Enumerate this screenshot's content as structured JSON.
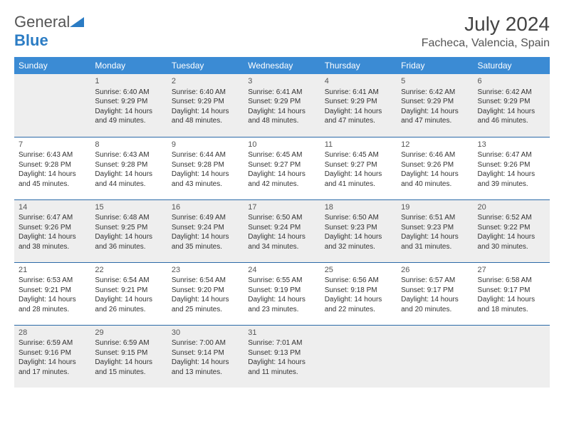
{
  "logo": {
    "text1": "General",
    "text2": "Blue"
  },
  "title": "July 2024",
  "location": "Facheca, Valencia, Spain",
  "colors": {
    "header_bg": "#3b8bd4",
    "header_text": "#ffffff",
    "row_odd_bg": "#eeeeee",
    "row_even_bg": "#ffffff",
    "row_border": "#2b6aa8",
    "logo_blue": "#2b7cc4"
  },
  "weekdays": [
    "Sunday",
    "Monday",
    "Tuesday",
    "Wednesday",
    "Thursday",
    "Friday",
    "Saturday"
  ],
  "weeks": [
    [
      null,
      {
        "n": "1",
        "sr": "Sunrise: 6:40 AM",
        "ss": "Sunset: 9:29 PM",
        "d1": "Daylight: 14 hours",
        "d2": "and 49 minutes."
      },
      {
        "n": "2",
        "sr": "Sunrise: 6:40 AM",
        "ss": "Sunset: 9:29 PM",
        "d1": "Daylight: 14 hours",
        "d2": "and 48 minutes."
      },
      {
        "n": "3",
        "sr": "Sunrise: 6:41 AM",
        "ss": "Sunset: 9:29 PM",
        "d1": "Daylight: 14 hours",
        "d2": "and 48 minutes."
      },
      {
        "n": "4",
        "sr": "Sunrise: 6:41 AM",
        "ss": "Sunset: 9:29 PM",
        "d1": "Daylight: 14 hours",
        "d2": "and 47 minutes."
      },
      {
        "n": "5",
        "sr": "Sunrise: 6:42 AM",
        "ss": "Sunset: 9:29 PM",
        "d1": "Daylight: 14 hours",
        "d2": "and 47 minutes."
      },
      {
        "n": "6",
        "sr": "Sunrise: 6:42 AM",
        "ss": "Sunset: 9:29 PM",
        "d1": "Daylight: 14 hours",
        "d2": "and 46 minutes."
      }
    ],
    [
      {
        "n": "7",
        "sr": "Sunrise: 6:43 AM",
        "ss": "Sunset: 9:28 PM",
        "d1": "Daylight: 14 hours",
        "d2": "and 45 minutes."
      },
      {
        "n": "8",
        "sr": "Sunrise: 6:43 AM",
        "ss": "Sunset: 9:28 PM",
        "d1": "Daylight: 14 hours",
        "d2": "and 44 minutes."
      },
      {
        "n": "9",
        "sr": "Sunrise: 6:44 AM",
        "ss": "Sunset: 9:28 PM",
        "d1": "Daylight: 14 hours",
        "d2": "and 43 minutes."
      },
      {
        "n": "10",
        "sr": "Sunrise: 6:45 AM",
        "ss": "Sunset: 9:27 PM",
        "d1": "Daylight: 14 hours",
        "d2": "and 42 minutes."
      },
      {
        "n": "11",
        "sr": "Sunrise: 6:45 AM",
        "ss": "Sunset: 9:27 PM",
        "d1": "Daylight: 14 hours",
        "d2": "and 41 minutes."
      },
      {
        "n": "12",
        "sr": "Sunrise: 6:46 AM",
        "ss": "Sunset: 9:26 PM",
        "d1": "Daylight: 14 hours",
        "d2": "and 40 minutes."
      },
      {
        "n": "13",
        "sr": "Sunrise: 6:47 AM",
        "ss": "Sunset: 9:26 PM",
        "d1": "Daylight: 14 hours",
        "d2": "and 39 minutes."
      }
    ],
    [
      {
        "n": "14",
        "sr": "Sunrise: 6:47 AM",
        "ss": "Sunset: 9:26 PM",
        "d1": "Daylight: 14 hours",
        "d2": "and 38 minutes."
      },
      {
        "n": "15",
        "sr": "Sunrise: 6:48 AM",
        "ss": "Sunset: 9:25 PM",
        "d1": "Daylight: 14 hours",
        "d2": "and 36 minutes."
      },
      {
        "n": "16",
        "sr": "Sunrise: 6:49 AM",
        "ss": "Sunset: 9:24 PM",
        "d1": "Daylight: 14 hours",
        "d2": "and 35 minutes."
      },
      {
        "n": "17",
        "sr": "Sunrise: 6:50 AM",
        "ss": "Sunset: 9:24 PM",
        "d1": "Daylight: 14 hours",
        "d2": "and 34 minutes."
      },
      {
        "n": "18",
        "sr": "Sunrise: 6:50 AM",
        "ss": "Sunset: 9:23 PM",
        "d1": "Daylight: 14 hours",
        "d2": "and 32 minutes."
      },
      {
        "n": "19",
        "sr": "Sunrise: 6:51 AM",
        "ss": "Sunset: 9:23 PM",
        "d1": "Daylight: 14 hours",
        "d2": "and 31 minutes."
      },
      {
        "n": "20",
        "sr": "Sunrise: 6:52 AM",
        "ss": "Sunset: 9:22 PM",
        "d1": "Daylight: 14 hours",
        "d2": "and 30 minutes."
      }
    ],
    [
      {
        "n": "21",
        "sr": "Sunrise: 6:53 AM",
        "ss": "Sunset: 9:21 PM",
        "d1": "Daylight: 14 hours",
        "d2": "and 28 minutes."
      },
      {
        "n": "22",
        "sr": "Sunrise: 6:54 AM",
        "ss": "Sunset: 9:21 PM",
        "d1": "Daylight: 14 hours",
        "d2": "and 26 minutes."
      },
      {
        "n": "23",
        "sr": "Sunrise: 6:54 AM",
        "ss": "Sunset: 9:20 PM",
        "d1": "Daylight: 14 hours",
        "d2": "and 25 minutes."
      },
      {
        "n": "24",
        "sr": "Sunrise: 6:55 AM",
        "ss": "Sunset: 9:19 PM",
        "d1": "Daylight: 14 hours",
        "d2": "and 23 minutes."
      },
      {
        "n": "25",
        "sr": "Sunrise: 6:56 AM",
        "ss": "Sunset: 9:18 PM",
        "d1": "Daylight: 14 hours",
        "d2": "and 22 minutes."
      },
      {
        "n": "26",
        "sr": "Sunrise: 6:57 AM",
        "ss": "Sunset: 9:17 PM",
        "d1": "Daylight: 14 hours",
        "d2": "and 20 minutes."
      },
      {
        "n": "27",
        "sr": "Sunrise: 6:58 AM",
        "ss": "Sunset: 9:17 PM",
        "d1": "Daylight: 14 hours",
        "d2": "and 18 minutes."
      }
    ],
    [
      {
        "n": "28",
        "sr": "Sunrise: 6:59 AM",
        "ss": "Sunset: 9:16 PM",
        "d1": "Daylight: 14 hours",
        "d2": "and 17 minutes."
      },
      {
        "n": "29",
        "sr": "Sunrise: 6:59 AM",
        "ss": "Sunset: 9:15 PM",
        "d1": "Daylight: 14 hours",
        "d2": "and 15 minutes."
      },
      {
        "n": "30",
        "sr": "Sunrise: 7:00 AM",
        "ss": "Sunset: 9:14 PM",
        "d1": "Daylight: 14 hours",
        "d2": "and 13 minutes."
      },
      {
        "n": "31",
        "sr": "Sunrise: 7:01 AM",
        "ss": "Sunset: 9:13 PM",
        "d1": "Daylight: 14 hours",
        "d2": "and 11 minutes."
      },
      null,
      null,
      null
    ]
  ]
}
